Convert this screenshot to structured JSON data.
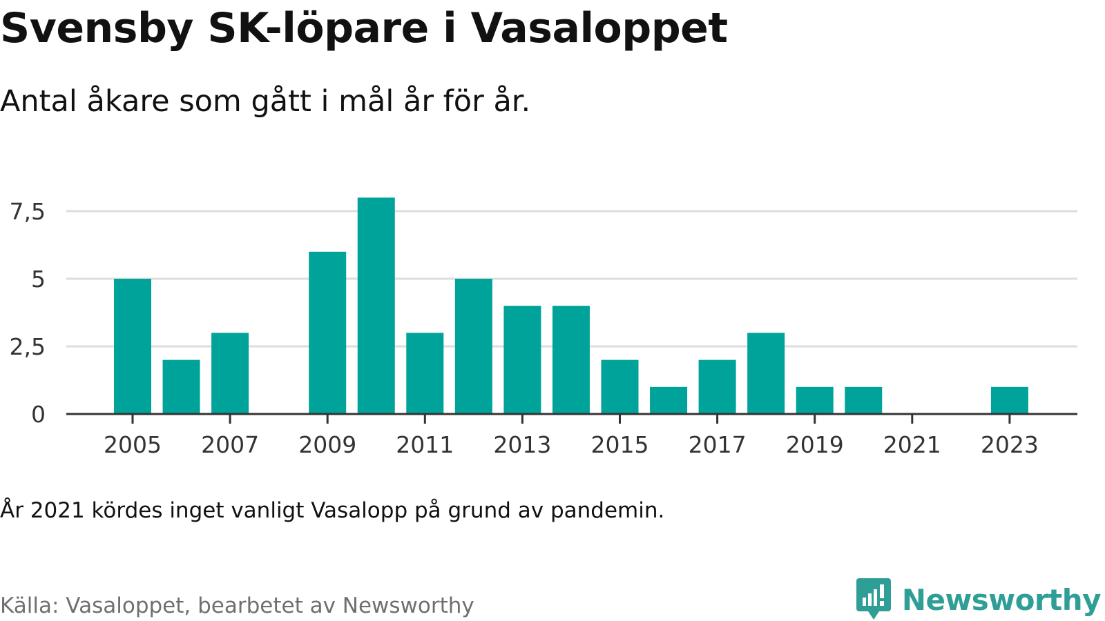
{
  "header": {
    "title": "Svensby SK-löpare i Vasaloppet",
    "subtitle": "Antal åkare som gått i mål år för år."
  },
  "footer": {
    "note": "År 2021 kördes inget vanligt Vasalopp på grund av pandemin.",
    "source": "Källa: Vasaloppet, bearbetet av Newsworthy",
    "brand": "Newsworthy",
    "brand_icon": "bar-chart-speech-bubble-icon"
  },
  "colors": {
    "bar": "#00a39a",
    "grid": "#dddddd",
    "axis": "#333333",
    "brand": "#2e9e96"
  },
  "chart_data": {
    "type": "bar",
    "categories": [
      "2005",
      "2006",
      "2007",
      "2008",
      "2009",
      "2010",
      "2011",
      "2012",
      "2013",
      "2014",
      "2015",
      "2016",
      "2017",
      "2018",
      "2019",
      "2020",
      "2021",
      "2022",
      "2023"
    ],
    "values": [
      5,
      2,
      3,
      0,
      6,
      8,
      3,
      5,
      4,
      4,
      2,
      1,
      2,
      3,
      1,
      1,
      0,
      0,
      1
    ],
    "x_tick_labels": [
      "2005",
      "2007",
      "2009",
      "2011",
      "2013",
      "2015",
      "2017",
      "2019",
      "2021",
      "2023"
    ],
    "y_ticks": [
      0,
      2.5,
      5,
      7.5
    ],
    "y_tick_labels": [
      "0",
      "2,5",
      "5",
      "7,5"
    ],
    "ylim": [
      0,
      8
    ],
    "grid": true,
    "legend": "none"
  }
}
